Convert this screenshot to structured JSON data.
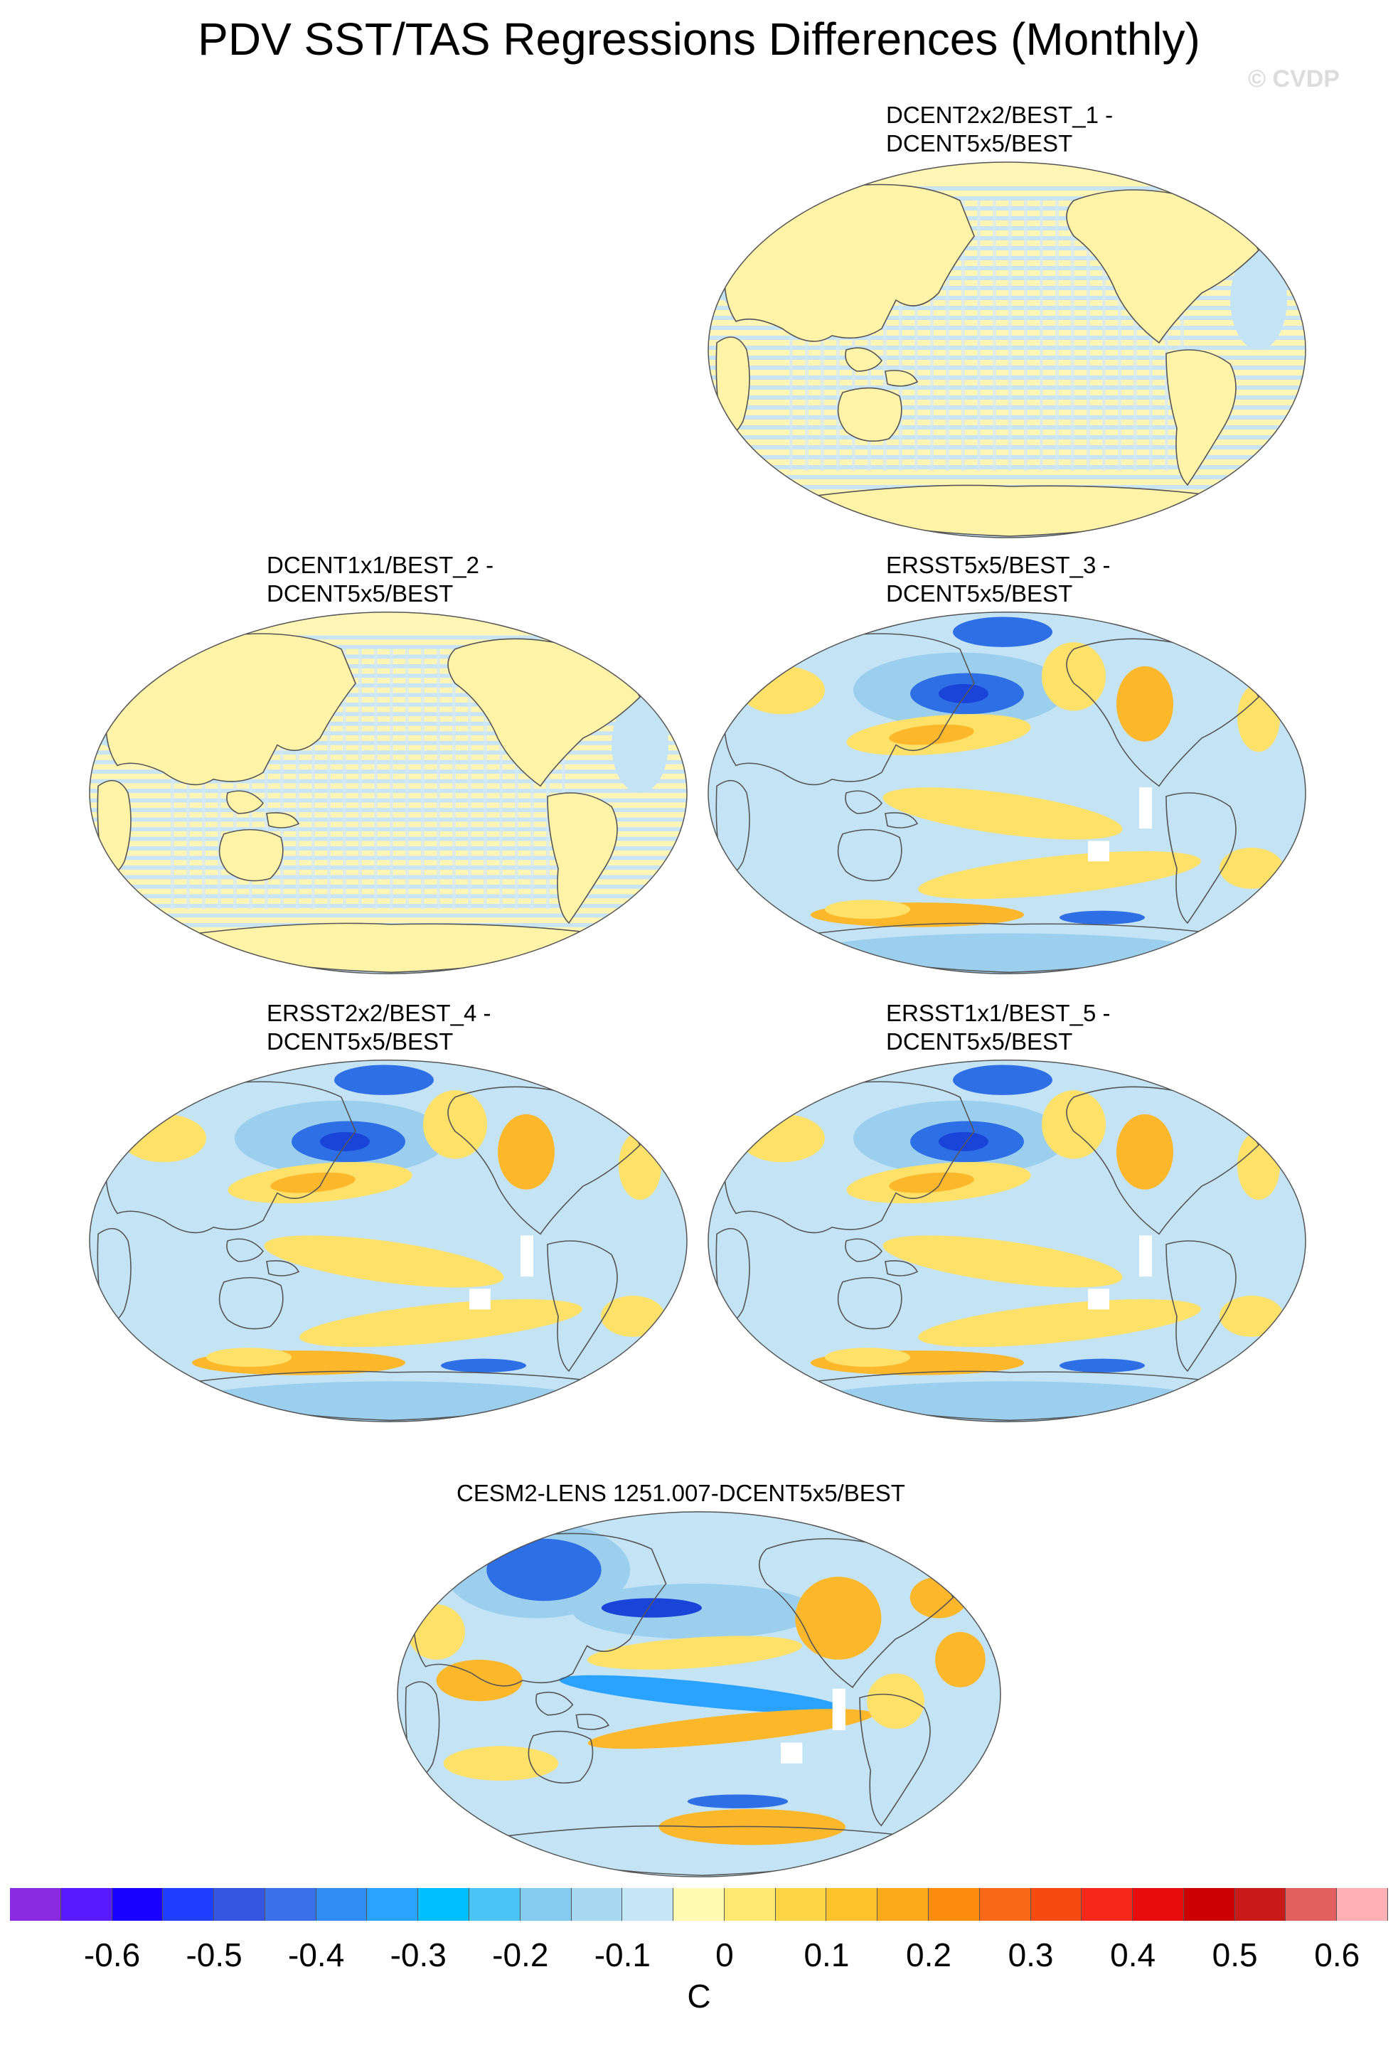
{
  "title": "PDV SST/TAS Regressions Differences (Monthly)",
  "watermark": "© CVDP",
  "panels": [
    {
      "label": "DCENT2x2/BEST_1 -\nDCENT5x5/BEST",
      "style": "striped"
    },
    {
      "label": "DCENT1x1/BEST_2 -\nDCENT5x5/BEST",
      "style": "striped"
    },
    {
      "label": "ERSST5x5/BEST_3 -\nDCENT5x5/BEST",
      "style": "ersst"
    },
    {
      "label": "ERSST2x2/BEST_4 -\nDCENT5x5/BEST",
      "style": "ersst"
    },
    {
      "label": "ERSST1x1/BEST_5 -\nDCENT5x5/BEST",
      "style": "ersst"
    },
    {
      "label": "CESM2-LENS 1251.007-DCENT5x5/BEST",
      "style": "cesm"
    }
  ],
  "colorbar": {
    "colors": [
      "#8a2be2",
      "#5a1aff",
      "#1a00ff",
      "#1f3fff",
      "#3556e0",
      "#3a70ea",
      "#2f8cf0",
      "#2aa2ff",
      "#00bfff",
      "#4ac3f5",
      "#84cbf0",
      "#a7d8f2",
      "#c5e6f6",
      "#fffbb0",
      "#fee872",
      "#fed545",
      "#fec22d",
      "#fdaa1a",
      "#fb8c0c",
      "#f86818",
      "#f64a10",
      "#f5281a",
      "#e80c0c",
      "#cc0000",
      "#c91a1a",
      "#e36060",
      "#ffb0b5"
    ],
    "tick_labels": [
      "-0.6",
      "-0.5",
      "-0.4",
      "-0.3",
      "-0.2",
      "-0.1",
      "0",
      "0.1",
      "0.2",
      "0.3",
      "0.4",
      "0.5",
      "0.6"
    ],
    "units": "C"
  }
}
